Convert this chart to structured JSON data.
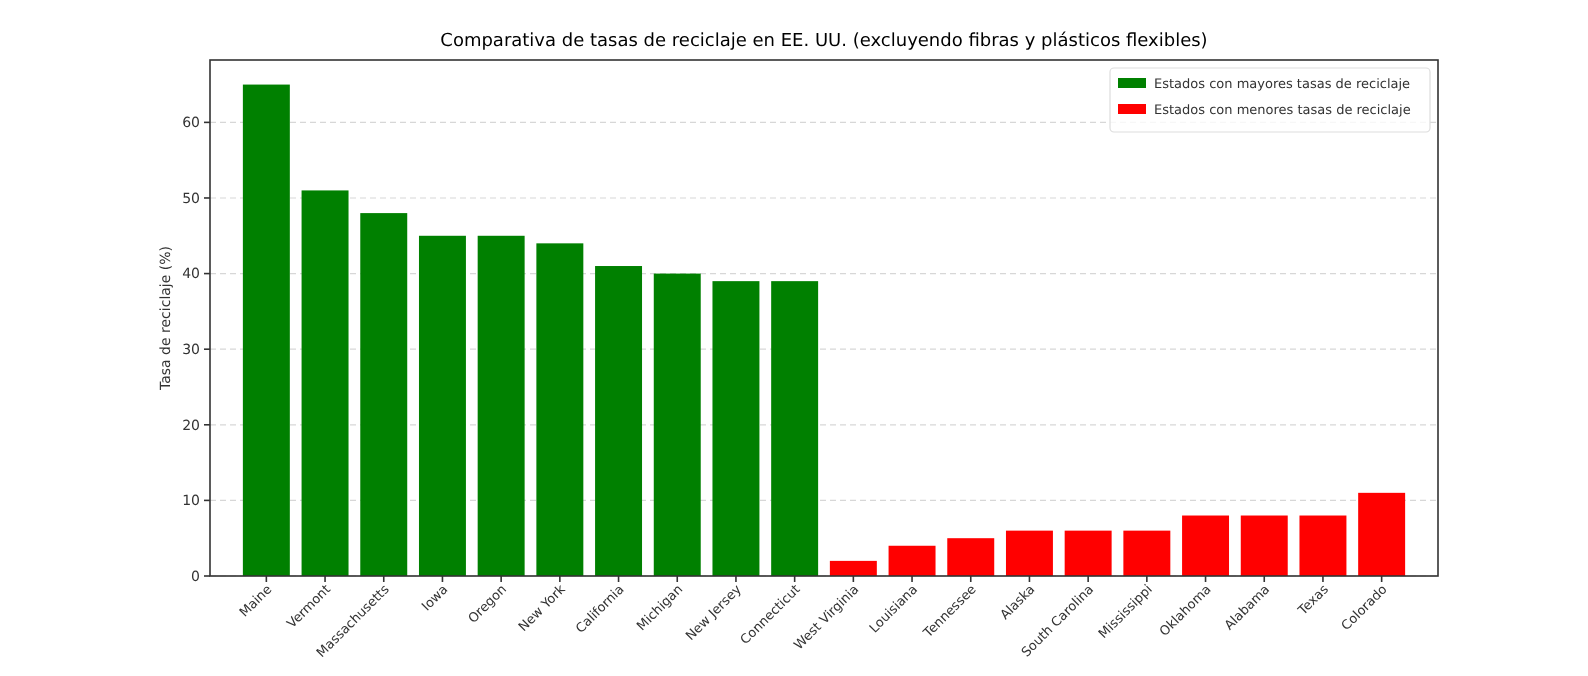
{
  "chart_data": {
    "type": "bar",
    "title": "Comparativa de tasas de reciclaje en EE. UU. (excluyendo fibras y plásticos flexibles)",
    "ylabel": "Tasa de reciclaje (%)",
    "categories": [
      "Maine",
      "Vermont",
      "Massachusetts",
      "Iowa",
      "Oregon",
      "New York",
      "California",
      "Michigan",
      "New Jersey",
      "Connecticut",
      "West Virginia",
      "Louisiana",
      "Tennessee",
      "Alaska",
      "South Carolina",
      "Mississippi",
      "Oklahoma",
      "Alabama",
      "Texas",
      "Colorado"
    ],
    "series": [
      {
        "name": "Estados con mayores tasas de reciclaje",
        "color": "#008000",
        "values": [
          65,
          51,
          48,
          45,
          45,
          44,
          41,
          40,
          39,
          39,
          null,
          null,
          null,
          null,
          null,
          null,
          null,
          null,
          null,
          null
        ]
      },
      {
        "name": "Estados con menores tasas de reciclaje",
        "color": "#ff0000",
        "values": [
          null,
          null,
          null,
          null,
          null,
          null,
          null,
          null,
          null,
          null,
          2,
          4,
          5,
          6,
          6,
          6,
          8,
          8,
          8,
          11
        ]
      }
    ],
    "ylim": [
      0,
      68.25
    ],
    "yticks": [
      0,
      10,
      20,
      30,
      40,
      50,
      60
    ],
    "grid": "y",
    "legend": "top right"
  }
}
